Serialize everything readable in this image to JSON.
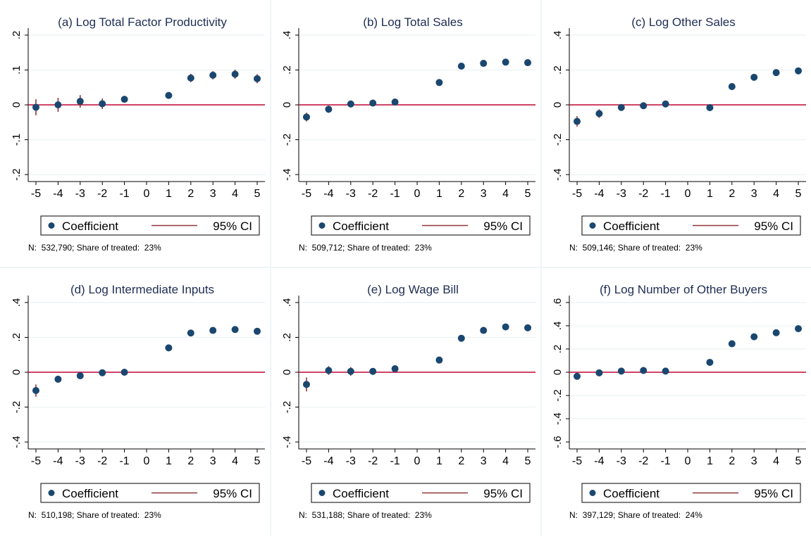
{
  "figure": {
    "legend": {
      "coef_label": "Coefficient",
      "ci_label": "95% CI"
    },
    "colors": {
      "marker": "#1a476f",
      "ci": "#90353b",
      "zero_line": "#c10534",
      "grid": "#eaf2f3",
      "axis": "#000000",
      "title": "#1e2d53"
    }
  },
  "chart_data": [
    {
      "type": "scatter",
      "title": "(a) Log Total Factor Productivity",
      "note": "N:  532,790; Share of treated:  23%",
      "x": [
        -5,
        -4,
        -3,
        -2,
        -1,
        1,
        2,
        3,
        4,
        5
      ],
      "coef": [
        -0.007,
        0.0,
        0.01,
        0.003,
        0.016,
        0.027,
        0.077,
        0.085,
        0.088,
        0.075
      ],
      "ci_low": [
        -0.03,
        -0.02,
        -0.008,
        -0.012,
        0.007,
        0.02,
        0.065,
        0.073,
        0.075,
        0.062
      ],
      "ci_high": [
        0.016,
        0.02,
        0.028,
        0.018,
        0.025,
        0.034,
        0.089,
        0.097,
        0.101,
        0.088
      ],
      "xticks": [
        -5,
        -4,
        -3,
        -2,
        -1,
        0,
        1,
        2,
        3,
        4,
        5
      ],
      "xtick_labels": [
        "-5",
        "-4",
        "-3",
        "-2",
        "-1",
        "0",
        "1",
        "2",
        "3",
        "4",
        "5"
      ],
      "yticks": [
        -0.2,
        -0.1,
        0,
        0.1,
        0.2
      ],
      "ytick_labels": [
        "-.2",
        "-.1",
        "0",
        ".1",
        ".2"
      ],
      "ylim": [
        -0.22,
        0.22
      ],
      "xlim": [
        -5.35,
        5.35
      ],
      "grid": true
    },
    {
      "type": "scatter",
      "title": "(b) Log Total Sales",
      "note": "N:  509,712; Share of treated:  23%",
      "x": [
        -5,
        -4,
        -3,
        -2,
        -1,
        1,
        2,
        3,
        4,
        5
      ],
      "coef": [
        -0.07,
        -0.025,
        0.005,
        0.01,
        0.016,
        0.128,
        0.222,
        0.238,
        0.245,
        0.242
      ],
      "ci_low": [
        -0.095,
        -0.045,
        -0.008,
        0.0,
        0.008,
        0.118,
        0.21,
        0.226,
        0.232,
        0.228
      ],
      "ci_high": [
        -0.045,
        -0.005,
        0.018,
        0.02,
        0.024,
        0.138,
        0.234,
        0.25,
        0.258,
        0.256
      ],
      "xticks": [
        -5,
        -4,
        -3,
        -2,
        -1,
        0,
        1,
        2,
        3,
        4,
        5
      ],
      "xtick_labels": [
        "-5",
        "-4",
        "-3",
        "-2",
        "-1",
        "0",
        "1",
        "2",
        "3",
        "4",
        "5"
      ],
      "yticks": [
        -0.4,
        -0.2,
        0,
        0.2,
        0.4
      ],
      "ytick_labels": [
        "-.4",
        "-.2",
        "0",
        ".2",
        ".4"
      ],
      "ylim": [
        -0.44,
        0.44
      ],
      "xlim": [
        -5.35,
        5.35
      ],
      "grid": true
    },
    {
      "type": "scatter",
      "title": "(c) Log Other Sales",
      "note": "N:  509,146; Share of treated:  23%",
      "x": [
        -5,
        -4,
        -3,
        -2,
        -1,
        1,
        2,
        3,
        4,
        5
      ],
      "coef": [
        -0.095,
        -0.05,
        -0.015,
        -0.005,
        0.005,
        -0.016,
        0.105,
        0.158,
        0.185,
        0.195
      ],
      "ci_low": [
        -0.125,
        -0.075,
        -0.03,
        -0.015,
        -0.003,
        -0.028,
        0.093,
        0.146,
        0.172,
        0.18
      ],
      "ci_high": [
        -0.065,
        -0.025,
        0.0,
        0.005,
        0.013,
        -0.004,
        0.117,
        0.17,
        0.198,
        0.21
      ],
      "xticks": [
        -5,
        -4,
        -3,
        -2,
        -1,
        0,
        1,
        2,
        3,
        4,
        5
      ],
      "xtick_labels": [
        "-5",
        "-4",
        "-3",
        "-2",
        "-1",
        "0",
        "1",
        "2",
        "3",
        "4",
        "5"
      ],
      "yticks": [
        -0.4,
        -0.2,
        0,
        0.2,
        0.4
      ],
      "ytick_labels": [
        "-.4",
        "-.2",
        "0",
        ".2",
        ".4"
      ],
      "ylim": [
        -0.44,
        0.44
      ],
      "xlim": [
        -5.35,
        5.35
      ],
      "grid": true
    },
    {
      "type": "scatter",
      "title": "(d) Log Intermediate Inputs",
      "note": "N:  510,198; Share of treated:  23%",
      "x": [
        -5,
        -4,
        -3,
        -2,
        -1,
        1,
        2,
        3,
        4,
        5
      ],
      "coef": [
        -0.105,
        -0.04,
        -0.02,
        -0.003,
        0.0,
        0.14,
        0.225,
        0.24,
        0.245,
        0.235
      ],
      "ci_low": [
        -0.14,
        -0.06,
        -0.035,
        -0.01,
        -0.006,
        0.13,
        0.213,
        0.228,
        0.233,
        0.222
      ],
      "ci_high": [
        -0.07,
        -0.02,
        -0.005,
        0.004,
        0.006,
        0.15,
        0.237,
        0.252,
        0.257,
        0.248
      ],
      "xticks": [
        -5,
        -4,
        -3,
        -2,
        -1,
        0,
        1,
        2,
        3,
        4,
        5
      ],
      "xtick_labels": [
        "-5",
        "-4",
        "-3",
        "-2",
        "-1",
        "0",
        "1",
        "2",
        "3",
        "4",
        "5"
      ],
      "yticks": [
        -0.4,
        -0.2,
        0,
        0.2,
        0.4
      ],
      "ytick_labels": [
        "-.4",
        "-.2",
        "0",
        ".2",
        ".4"
      ],
      "ylim": [
        -0.44,
        0.44
      ],
      "xlim": [
        -5.35,
        5.35
      ],
      "grid": true
    },
    {
      "type": "scatter",
      "title": "(e) Log Wage Bill",
      "note": "N:  531,188; Share of treated:  23%",
      "x": [
        -5,
        -4,
        -3,
        -2,
        -1,
        1,
        2,
        3,
        4,
        5
      ],
      "coef": [
        -0.07,
        0.01,
        0.005,
        0.005,
        0.02,
        0.07,
        0.195,
        0.24,
        0.26,
        0.255
      ],
      "ci_low": [
        -0.11,
        -0.015,
        -0.02,
        -0.01,
        0.01,
        0.06,
        0.183,
        0.227,
        0.245,
        0.238
      ],
      "ci_high": [
        -0.03,
        0.035,
        0.03,
        0.02,
        0.03,
        0.08,
        0.207,
        0.253,
        0.275,
        0.272
      ],
      "xticks": [
        -5,
        -4,
        -3,
        -2,
        -1,
        0,
        1,
        2,
        3,
        4,
        5
      ],
      "xtick_labels": [
        "-5",
        "-4",
        "-3",
        "-2",
        "-1",
        "0",
        "1",
        "2",
        "3",
        "4",
        "5"
      ],
      "yticks": [
        -0.4,
        -0.2,
        0,
        0.2,
        0.4
      ],
      "ytick_labels": [
        "-.4",
        "-.2",
        "0",
        ".2",
        ".4"
      ],
      "ylim": [
        -0.44,
        0.44
      ],
      "xlim": [
        -5.35,
        5.35
      ],
      "grid": true
    },
    {
      "type": "scatter",
      "title": "(f) Log Number of Other Buyers",
      "note": "N:  397,129; Share of treated:  24%",
      "x": [
        -5,
        -4,
        -3,
        -2,
        -1,
        1,
        2,
        3,
        4,
        5
      ],
      "coef": [
        -0.035,
        -0.005,
        0.01,
        0.015,
        0.01,
        0.085,
        0.245,
        0.305,
        0.34,
        0.375
      ],
      "ci_low": [
        -0.06,
        -0.025,
        0.0,
        0.005,
        0.002,
        0.075,
        0.232,
        0.292,
        0.326,
        0.36
      ],
      "ci_high": [
        -0.01,
        0.015,
        0.02,
        0.025,
        0.018,
        0.095,
        0.258,
        0.318,
        0.354,
        0.39
      ],
      "xticks": [
        -5,
        -4,
        -3,
        -2,
        -1,
        0,
        1,
        2,
        3,
        4,
        5
      ],
      "xtick_labels": [
        "-5",
        "-4",
        "-3",
        "-2",
        "-1",
        "0",
        "1",
        "2",
        "3",
        "4",
        "5"
      ],
      "yticks": [
        -0.6,
        -0.4,
        -0.2,
        0,
        0.2,
        0.4,
        0.6
      ],
      "ytick_labels": [
        "-.6",
        "-.4",
        "-.2",
        "0",
        ".2",
        ".4",
        ".6"
      ],
      "ylim": [
        -0.66,
        0.66
      ],
      "xlim": [
        -5.35,
        5.35
      ],
      "grid": true
    }
  ]
}
